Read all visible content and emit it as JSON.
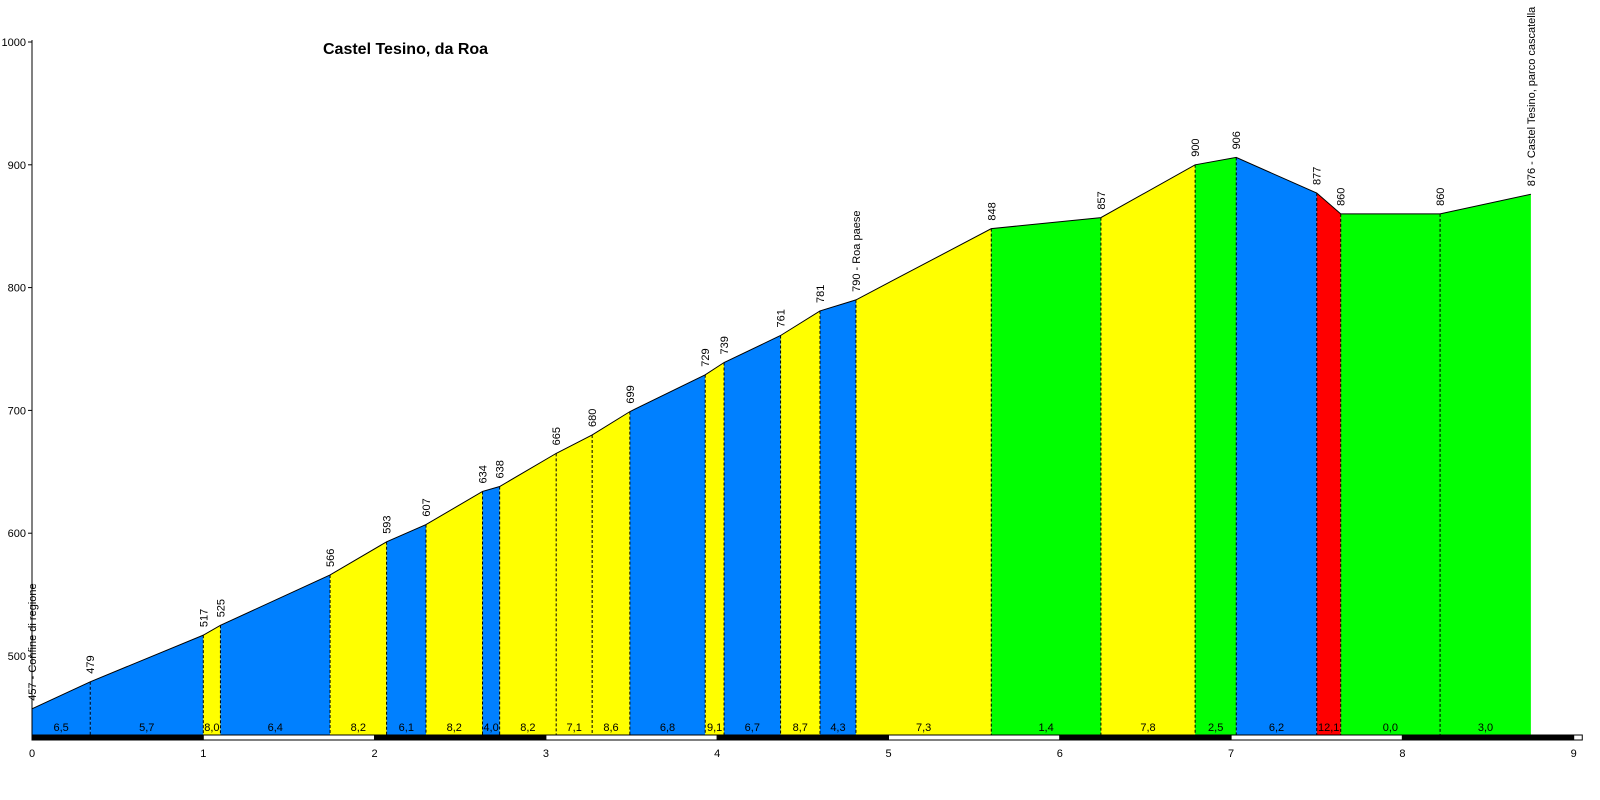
{
  "chart_data": {
    "type": "area",
    "title": "Castel Tesino, da Roa",
    "xlabel": "",
    "ylabel": "",
    "xlim": [
      0,
      9
    ],
    "ylim": [
      430,
      1000
    ],
    "x_ticks": [
      "0",
      "1",
      "2",
      "3",
      "4",
      "5",
      "6",
      "7",
      "8",
      "9"
    ],
    "y_ticks": [
      "500",
      "600",
      "700",
      "800",
      "900",
      "1000"
    ],
    "grid": false,
    "legend": "none",
    "profile": [
      {
        "km": 0.0,
        "alt": 457,
        "label": "457 - Confine di regione"
      },
      {
        "km": 0.34,
        "alt": 479,
        "label": "479"
      },
      {
        "km": 1.0,
        "alt": 517,
        "label": "517"
      },
      {
        "km": 1.1,
        "alt": 525,
        "label": "525"
      },
      {
        "km": 1.74,
        "alt": 566,
        "label": "566"
      },
      {
        "km": 2.07,
        "alt": 593,
        "label": "593"
      },
      {
        "km": 2.3,
        "alt": 607,
        "label": "607"
      },
      {
        "km": 2.63,
        "alt": 634,
        "label": "634"
      },
      {
        "km": 2.73,
        "alt": 638,
        "label": "638"
      },
      {
        "km": 3.06,
        "alt": 665,
        "label": "665"
      },
      {
        "km": 3.27,
        "alt": 680,
        "label": "680"
      },
      {
        "km": 3.49,
        "alt": 699,
        "label": "699"
      },
      {
        "km": 3.93,
        "alt": 729,
        "label": "729"
      },
      {
        "km": 4.04,
        "alt": 739,
        "label": "739"
      },
      {
        "km": 4.37,
        "alt": 761,
        "label": "761"
      },
      {
        "km": 4.6,
        "alt": 781,
        "label": "781"
      },
      {
        "km": 4.81,
        "alt": 790,
        "label": "790 - Roa paese"
      },
      {
        "km": 5.6,
        "alt": 848,
        "label": "848"
      },
      {
        "km": 6.24,
        "alt": 857,
        "label": "857"
      },
      {
        "km": 6.79,
        "alt": 900,
        "label": "900"
      },
      {
        "km": 7.03,
        "alt": 906,
        "label": "906"
      },
      {
        "km": 7.5,
        "alt": 877,
        "label": "877"
      },
      {
        "km": 7.64,
        "alt": 860,
        "label": "860"
      },
      {
        "km": 8.22,
        "alt": 860,
        "label": "860"
      },
      {
        "km": 8.75,
        "alt": 876,
        "label": "876 - Castel Tesino, parco cascatella"
      }
    ],
    "segments": [
      {
        "gradient": "6,5",
        "color": "#0080ff"
      },
      {
        "gradient": "5,7",
        "color": "#0080ff"
      },
      {
        "gradient": "8,0",
        "color": "#ffff00"
      },
      {
        "gradient": "6,4",
        "color": "#0080ff"
      },
      {
        "gradient": "8,2",
        "color": "#ffff00"
      },
      {
        "gradient": "6,1",
        "color": "#0080ff"
      },
      {
        "gradient": "8,2",
        "color": "#ffff00"
      },
      {
        "gradient": "4,0",
        "color": "#0080ff"
      },
      {
        "gradient": "8,2",
        "color": "#ffff00"
      },
      {
        "gradient": "7,1",
        "color": "#ffff00"
      },
      {
        "gradient": "8,6",
        "color": "#ffff00"
      },
      {
        "gradient": "6,8",
        "color": "#0080ff"
      },
      {
        "gradient": "9,1",
        "color": "#ffff00"
      },
      {
        "gradient": "6,7",
        "color": "#0080ff"
      },
      {
        "gradient": "8,7",
        "color": "#ffff00"
      },
      {
        "gradient": "4,3",
        "color": "#0080ff"
      },
      {
        "gradient": "7,3",
        "color": "#ffff00"
      },
      {
        "gradient": "1,4",
        "color": "#00ff00"
      },
      {
        "gradient": "7,8",
        "color": "#ffff00"
      },
      {
        "gradient": "2,5",
        "color": "#00ff00"
      },
      {
        "gradient": "6,2",
        "color": "#0080ff"
      },
      {
        "gradient": "12,1",
        "color": "#ff0000"
      },
      {
        "gradient": "0,0",
        "color": "#00ff00"
      },
      {
        "gradient": "3,0",
        "color": "#00ff00"
      }
    ]
  }
}
